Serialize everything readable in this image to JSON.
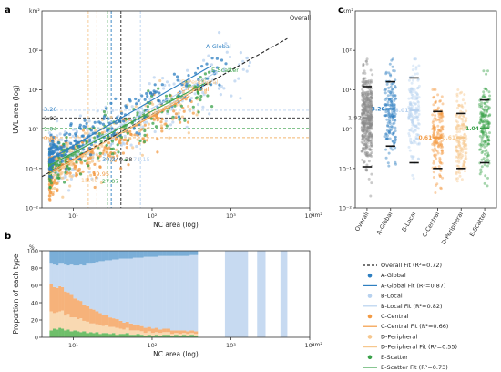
{
  "chart_data": [
    {
      "panel": "a",
      "type": "scatter",
      "x_scale": "log",
      "y_scale": "log",
      "xlim": [
        4,
        10000
      ],
      "ylim": [
        0.01,
        1000
      ],
      "xlabel": "NC area (log)",
      "ylabel": "UVL area (log)",
      "x_unit": "km²",
      "y_unit": "km²",
      "x_ticks": [
        "10¹",
        "10²",
        "10³",
        "10⁴"
      ],
      "y_ticks": [
        "10⁻²",
        "10⁻¹",
        "10⁰",
        "10¹",
        "10²"
      ],
      "colors": {
        "A-Global": "#2e7fc1",
        "B-Local": "#b8d2ef",
        "C-Central": "#f39b45",
        "D-Peripheral": "#f6c78e",
        "E-Scatter": "#3aa14a",
        "Overall": "#222222"
      },
      "h_lines": [
        {
          "label": "3.26",
          "y": 3.26,
          "color": "#2e7fc1"
        },
        {
          "label": "3.01",
          "y": 3.01,
          "color": "#b8d2ef"
        },
        {
          "label": "1.92",
          "y": 1.92,
          "color": "#222222"
        },
        {
          "label": "1.04",
          "y": 1.04,
          "color": "#3aa14a"
        },
        {
          "label": "0.61",
          "y": 0.61,
          "color": "#f39b45"
        },
        {
          "label": "0.61",
          "y": 0.605,
          "color": "#f6c78e"
        }
      ],
      "v_lines": [
        {
          "label": "15.49",
          "x": 15.49,
          "color": "#f6c78e"
        },
        {
          "label": "19.95",
          "x": 19.95,
          "color": "#f39b45"
        },
        {
          "label": "27.07",
          "x": 27.07,
          "color": "#3aa14a"
        },
        {
          "label": "30.34",
          "x": 30.34,
          "color": "#2e7fc1"
        },
        {
          "label": "40.28",
          "x": 40.28,
          "color": "#222222"
        },
        {
          "label": "71.15",
          "x": 71.15,
          "color": "#b8d2ef"
        }
      ],
      "fit_lines": [
        {
          "label": "Overall",
          "x": [
            4,
            5200
          ],
          "y": [
            0.062,
            200
          ],
          "color": "#222222",
          "dash": true
        },
        {
          "label": "A-Global",
          "x": [
            5,
            560
          ],
          "y": [
            0.17,
            40
          ],
          "color": "#2e7fc1"
        },
        {
          "label": "B-Local",
          "x": [
            5,
            700
          ],
          "y": [
            0.12,
            30
          ],
          "color": "#b8d2ef"
        },
        {
          "label": "C-Central",
          "x": [
            5,
            300
          ],
          "y": [
            0.08,
            7
          ],
          "color": "#f39b45"
        },
        {
          "label": "D-Peripheral",
          "x": [
            5,
            340
          ],
          "y": [
            0.07,
            9.5
          ],
          "color": "#f6c78e"
        },
        {
          "label": "E-Scatter",
          "x": [
            5,
            480
          ],
          "y": [
            0.12,
            15
          ],
          "color": "#3aa14a"
        }
      ]
    },
    {
      "panel": "b",
      "type": "bar",
      "stacked": true,
      "x_scale": "log",
      "xlim": [
        4,
        10000
      ],
      "ylim": [
        0,
        100
      ],
      "xlabel": "NC area (log)",
      "ylabel": "Proportion of each type",
      "x_unit": "km²",
      "y_unit": "%",
      "x_ticks": [
        "10¹",
        "10²",
        "10³",
        "10⁴"
      ],
      "y_ticks": [
        "0",
        "20",
        "40",
        "60",
        "80",
        "100"
      ],
      "bin_edges": [
        5,
        5.5,
        6,
        6.5,
        7,
        7.6,
        8.3,
        9,
        10,
        11,
        12,
        13,
        14.5,
        16,
        17.5,
        19,
        21,
        23,
        25,
        28,
        31,
        34,
        38,
        42,
        46,
        51,
        57,
        63,
        70,
        78,
        87,
        97,
        108,
        120,
        135,
        150,
        170,
        190,
        215,
        240,
        270,
        300,
        340,
        380
      ],
      "series": [
        {
          "name": "E-Scatter",
          "values": [
            8,
            10,
            9,
            11,
            10,
            8,
            9,
            7,
            8,
            7,
            6,
            7,
            5,
            6,
            5,
            6,
            4,
            5,
            5,
            4,
            5,
            3,
            4,
            4,
            5,
            3,
            3,
            4,
            3,
            2,
            3,
            2,
            3,
            2,
            3,
            3,
            2,
            3,
            2,
            3,
            2,
            3,
            2
          ]
        },
        {
          "name": "D-Peripheral",
          "values": [
            22,
            18,
            20,
            19,
            21,
            17,
            18,
            16,
            15,
            14,
            16,
            12,
            13,
            10,
            11,
            9,
            10,
            8,
            9,
            8,
            7,
            8,
            6,
            5,
            6,
            5,
            5,
            4,
            4,
            3,
            4,
            3,
            3,
            3,
            3,
            3,
            2,
            2,
            2,
            2,
            2,
            2,
            2
          ]
        },
        {
          "name": "C-Central",
          "values": [
            32,
            30,
            28,
            29,
            27,
            28,
            25,
            26,
            22,
            22,
            20,
            19,
            18,
            17,
            16,
            15,
            14,
            13,
            12,
            11,
            10,
            10,
            9,
            8,
            7,
            8,
            7,
            6,
            6,
            6,
            5,
            5,
            5,
            4,
            4,
            4,
            4,
            3,
            4,
            3,
            3,
            3,
            3
          ]
        },
        {
          "name": "B-Local",
          "values": [
            23,
            26,
            26,
            26,
            27,
            31,
            31,
            35,
            38,
            40,
            42,
            45,
            49,
            52,
            54,
            57,
            60,
            62,
            63,
            66,
            68,
            69,
            72,
            74,
            73,
            75,
            77,
            78,
            79,
            82,
            81,
            83,
            82,
            85,
            84,
            84,
            86,
            86,
            86,
            86,
            87,
            87,
            88
          ]
        },
        {
          "name": "A-Global",
          "values": [
            15,
            16,
            17,
            15,
            15,
            16,
            17,
            16,
            17,
            17,
            16,
            17,
            15,
            15,
            14,
            13,
            12,
            12,
            11,
            11,
            10,
            10,
            9,
            9,
            9,
            9,
            8,
            8,
            8,
            7,
            7,
            7,
            7,
            6,
            6,
            6,
            6,
            6,
            6,
            6,
            6,
            5,
            5
          ]
        }
      ],
      "solid_bars": [
        {
          "name": "B-Local",
          "x_from": 840,
          "x_to": 1650
        },
        {
          "name": "B-Local",
          "x_from": 2150,
          "x_to": 2750
        },
        {
          "name": "B-Local",
          "x_from": 4250,
          "x_to": 5200
        }
      ]
    },
    {
      "panel": "c",
      "type": "scatter",
      "y_scale": "log",
      "ylim": [
        0.01,
        1000
      ],
      "y_unit": "km²",
      "y_ticks": [
        "10⁻²",
        "10⁻¹",
        "10⁰",
        "10¹",
        "10²"
      ],
      "categories": [
        "Overall",
        "A-Global",
        "B-Local",
        "C-Central",
        "D-Peripheral",
        "E-Scatter"
      ],
      "median_labels": [
        "1.92",
        "3.26",
        "3.01",
        "0.61",
        "0.61",
        "1.04"
      ],
      "medians": [
        1.92,
        3.26,
        3.01,
        0.61,
        0.61,
        1.04
      ],
      "whisker_low": [
        0.11,
        0.37,
        0.14,
        0.1,
        0.1,
        0.14
      ],
      "whisker_high": [
        12,
        16,
        20,
        2.8,
        2.5,
        5.5
      ],
      "point_range": [
        [
          0.02,
          60
        ],
        [
          0.08,
          60
        ],
        [
          0.03,
          60
        ],
        [
          0.02,
          10
        ],
        [
          0.02,
          10
        ],
        [
          0.03,
          30
        ]
      ],
      "colors": [
        "#8c8c8c",
        "#2e7fc1",
        "#b8d2ef",
        "#f39b45",
        "#f6c78e",
        "#3aa14a"
      ]
    }
  ],
  "legend": [
    {
      "label": "Overall Fit (R²=0.72)",
      "kind": "dashline",
      "color": "#222222"
    },
    {
      "label": "A-Global",
      "kind": "dot",
      "color": "#2e7fc1"
    },
    {
      "label": "A-Global Fit (R²=0.87)",
      "kind": "line",
      "color": "#2e7fc1"
    },
    {
      "label": "B-Local",
      "kind": "dot",
      "color": "#b8d2ef"
    },
    {
      "label": "B-Local Fit (R²=0.82)",
      "kind": "line",
      "color": "#b8d2ef"
    },
    {
      "label": "C-Central",
      "kind": "dot",
      "color": "#f39b45"
    },
    {
      "label": "C-Central Fit (R²=0.66)",
      "kind": "line",
      "color": "#f39b45"
    },
    {
      "label": "D-Peripheral",
      "kind": "dot",
      "color": "#f6c78e"
    },
    {
      "label": "D-Peripheral Fit (R²=0.55)",
      "kind": "line",
      "color": "#f6c78e"
    },
    {
      "label": "E-Scatter",
      "kind": "dot",
      "color": "#3aa14a"
    },
    {
      "label": "E-Scatter Fit (R²=0.73)",
      "kind": "line",
      "color": "#3aa14a"
    }
  ]
}
